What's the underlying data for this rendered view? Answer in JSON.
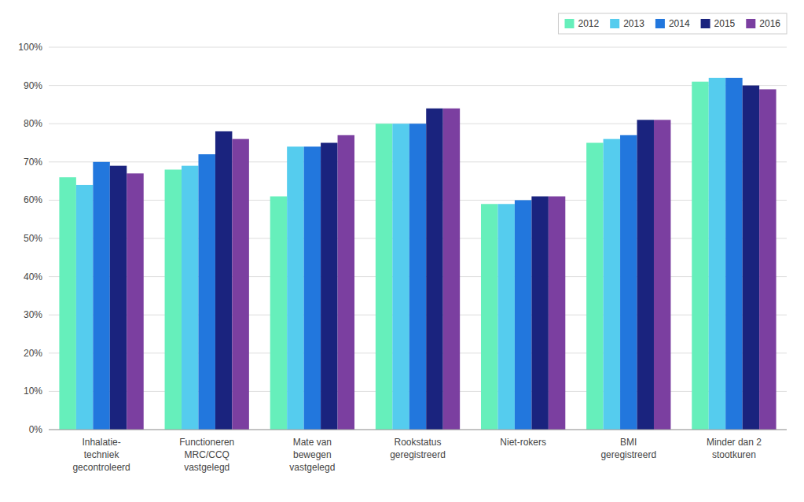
{
  "chart_data": {
    "type": "bar",
    "categories": [
      "Inhalatie-\ntechniek\ngecontroleerd",
      "Functioneren\nMRC/CCQ\nvastgelegd",
      "Mate van\nbewegen\nvastgelegd",
      "Rookstatus\ngeregistreerd",
      "Niet-rokers",
      "BMI\ngeregistreerd",
      "Minder dan 2\nstootkuren"
    ],
    "series": [
      {
        "name": "2012",
        "color": "#66EFBB",
        "values": [
          66,
          68,
          61,
          80,
          59,
          75,
          91
        ]
      },
      {
        "name": "2013",
        "color": "#55CCEE",
        "values": [
          64,
          69,
          74,
          80,
          59,
          76,
          92
        ]
      },
      {
        "name": "2014",
        "color": "#2277DD",
        "values": [
          70,
          72,
          74,
          80,
          60,
          77,
          92
        ]
      },
      {
        "name": "2015",
        "color": "#1A237E",
        "values": [
          69,
          78,
          75,
          84,
          61,
          81,
          90
        ]
      },
      {
        "name": "2016",
        "color": "#7B3FA0",
        "values": [
          67,
          76,
          77,
          84,
          61,
          81,
          89
        ]
      }
    ],
    "ylim": [
      0,
      100
    ],
    "yticks": [
      {
        "value": 0,
        "label": "0%"
      },
      {
        "value": 10,
        "label": "10%"
      },
      {
        "value": 20,
        "label": "20%"
      },
      {
        "value": 30,
        "label": "30%"
      },
      {
        "value": 40,
        "label": "40%"
      },
      {
        "value": 50,
        "label": "50%"
      },
      {
        "value": 60,
        "label": "60%"
      },
      {
        "value": 70,
        "label": "70%"
      },
      {
        "value": 80,
        "label": "80%"
      },
      {
        "value": 90,
        "label": "90%"
      },
      {
        "value": 100,
        "label": "100%"
      }
    ],
    "grid": true,
    "legend": "upper right"
  }
}
